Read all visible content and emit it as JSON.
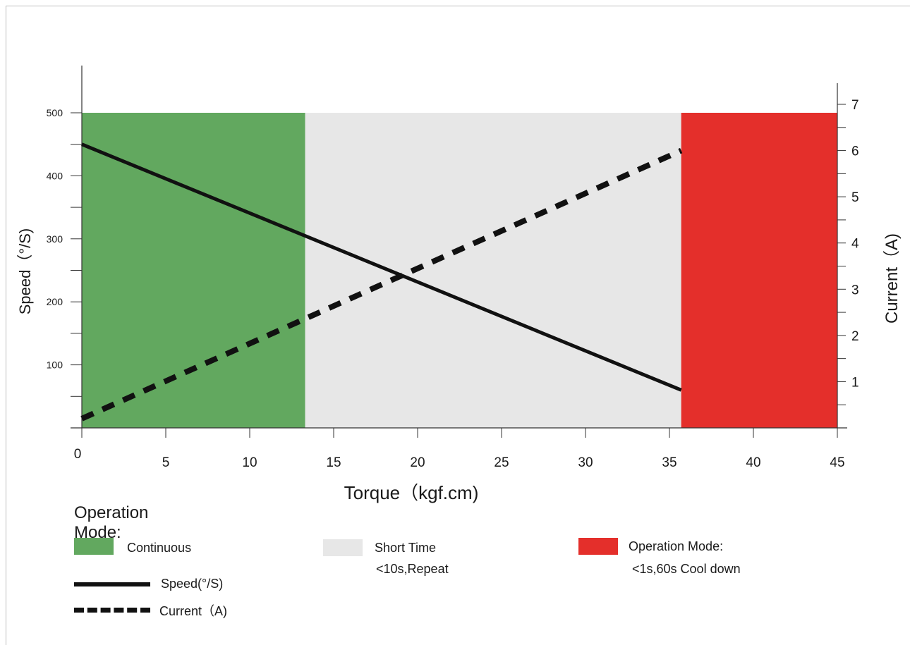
{
  "colors": {
    "continuous": "#62a85f",
    "short_time": "#e7e7e7",
    "cool_down": "#e42f2b",
    "line": "#111111"
  },
  "chart_data": {
    "type": "line",
    "xlabel": "Torque（kgf.cm)",
    "ylabel": "Speed（°/S)",
    "y2label": "Current（A)",
    "xlim": [
      0,
      45
    ],
    "ylim": [
      0,
      500
    ],
    "y2lim": [
      0,
      7
    ],
    "x_ticks": [
      0,
      5,
      10,
      15,
      20,
      25,
      30,
      35,
      40,
      45
    ],
    "y_ticks": [
      100,
      200,
      300,
      400,
      500
    ],
    "y2_ticks": [
      1,
      2,
      3,
      4,
      5,
      6,
      7
    ],
    "regions": [
      {
        "name": "Continuous",
        "x_start": 0,
        "x_end": 13.3,
        "y_top": 500
      },
      {
        "name": "Short Time",
        "x_start": 13.3,
        "x_end": 35.7,
        "y_top": 500
      },
      {
        "name": "Operation Mode:",
        "x_start": 35.7,
        "x_end": 45,
        "y_top": 500
      }
    ],
    "series": [
      {
        "name": "Speed(°/S)",
        "axis": "left",
        "style": "solid",
        "x": [
          0,
          35.7
        ],
        "y": [
          450,
          60
        ]
      },
      {
        "name": "Current（A)",
        "axis": "right",
        "style": "dashed",
        "x": [
          0,
          35.7
        ],
        "y": [
          0.2,
          6.0
        ]
      }
    ]
  },
  "legend": {
    "title": "Operation Mode:",
    "continuous_label": "Continuous",
    "short_time_label": "Short Time",
    "short_time_note": "<10s,Repeat",
    "cool_label": "Operation Mode:",
    "cool_note": "<1s,60s Cool down",
    "speed_label": "Speed(°/S)",
    "current_label": "Current（A)"
  }
}
